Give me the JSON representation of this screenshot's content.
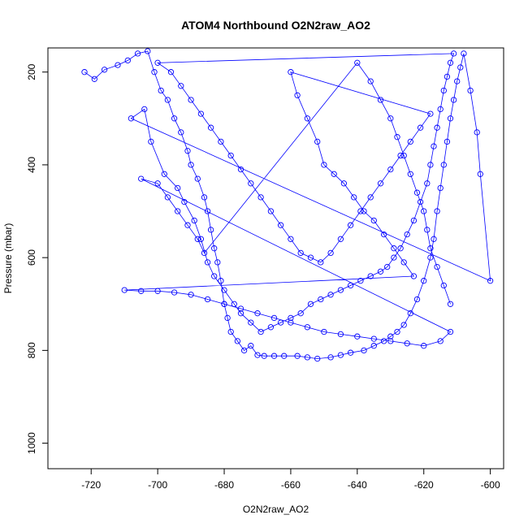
{
  "chart_data": {
    "type": "scatter",
    "title": "ATOM4 Northbound O2N2raw_AO2",
    "xlabel": "O2N2raw_AO2",
    "ylabel": "Pressure (mbar)",
    "xlim": [
      -733,
      -596
    ],
    "ylim": [
      1055,
      148
    ],
    "y_reversed": true,
    "x_ticks": [
      -720,
      -700,
      -680,
      -660,
      -640,
      -620,
      -600
    ],
    "x_tick_labels": [
      "-720",
      "-700",
      "-680",
      "-660",
      "-640",
      "-620",
      "-600"
    ],
    "y_ticks": [
      200,
      400,
      600,
      800,
      1000
    ],
    "y_tick_labels": [
      "200",
      "400",
      "600",
      "800",
      "1000"
    ],
    "grid": false,
    "legend": "none",
    "marker": "open-circle",
    "color": "#0000ff",
    "series": [
      {
        "points": [
          [
            -722,
            200
          ],
          [
            -719,
            215
          ],
          [
            -716,
            195
          ],
          [
            -712,
            185
          ],
          [
            -709,
            175
          ],
          [
            -706,
            160
          ],
          [
            -703,
            155
          ],
          [
            -701,
            200
          ],
          [
            -699,
            240
          ],
          [
            -697,
            260
          ],
          [
            -695,
            300
          ],
          [
            -693,
            330
          ],
          [
            -691,
            370
          ],
          [
            -690,
            400
          ],
          [
            -688,
            430
          ],
          [
            -686,
            470
          ],
          [
            -685,
            500
          ],
          [
            -684,
            540
          ],
          [
            -683,
            580
          ],
          [
            -682,
            610
          ],
          [
            -681,
            650
          ],
          [
            -680,
            700
          ],
          [
            -679,
            730
          ],
          [
            -678,
            760
          ],
          [
            -676,
            780
          ],
          [
            -674,
            800
          ],
          [
            -672,
            790
          ],
          [
            -670,
            810
          ],
          [
            -668,
            812
          ],
          [
            -665,
            812
          ],
          [
            -662,
            812
          ],
          [
            -658,
            812
          ],
          [
            -655,
            815
          ],
          [
            -652,
            818
          ],
          [
            -648,
            815
          ],
          [
            -645,
            810
          ],
          [
            -642,
            805
          ],
          [
            -638,
            800
          ],
          [
            -635,
            790
          ],
          [
            -632,
            780
          ],
          [
            -630,
            770
          ],
          [
            -628,
            760
          ],
          [
            -626,
            745
          ],
          [
            -624,
            720
          ],
          [
            -622,
            690
          ],
          [
            -620,
            650
          ],
          [
            -618,
            600
          ],
          [
            -617,
            560
          ],
          [
            -616,
            500
          ],
          [
            -615,
            450
          ],
          [
            -614,
            400
          ],
          [
            -613,
            350
          ],
          [
            -612,
            300
          ],
          [
            -611,
            260
          ],
          [
            -610,
            220
          ],
          [
            -609,
            190
          ],
          [
            -608,
            160
          ],
          [
            -606,
            240
          ],
          [
            -604,
            330
          ],
          [
            -603,
            420
          ],
          [
            -600,
            650
          ],
          [
            -708,
            300
          ],
          [
            -704,
            280
          ],
          [
            -702,
            350
          ],
          [
            -698,
            420
          ],
          [
            -694,
            450
          ],
          [
            -692,
            480
          ],
          [
            -689,
            520
          ],
          [
            -687,
            560
          ],
          [
            -685,
            610
          ],
          [
            -683,
            640
          ],
          [
            -680,
            670
          ],
          [
            -677,
            700
          ],
          [
            -675,
            720
          ],
          [
            -672,
            740
          ],
          [
            -669,
            760
          ],
          [
            -666,
            750
          ],
          [
            -663,
            740
          ],
          [
            -660,
            730
          ],
          [
            -657,
            720
          ],
          [
            -654,
            700
          ],
          [
            -651,
            690
          ],
          [
            -648,
            680
          ],
          [
            -645,
            670
          ],
          [
            -642,
            660
          ],
          [
            -639,
            650
          ],
          [
            -636,
            640
          ],
          [
            -633,
            630
          ],
          [
            -631,
            620
          ],
          [
            -629,
            600
          ],
          [
            -627,
            580
          ],
          [
            -625,
            550
          ],
          [
            -623,
            520
          ],
          [
            -621,
            480
          ],
          [
            -619,
            440
          ],
          [
            -618,
            400
          ],
          [
            -617,
            360
          ],
          [
            -616,
            320
          ],
          [
            -615,
            280
          ],
          [
            -614,
            240
          ],
          [
            -613,
            210
          ],
          [
            -612,
            180
          ],
          [
            -611,
            160
          ],
          [
            -700,
            180
          ],
          [
            -696,
            200
          ],
          [
            -693,
            230
          ],
          [
            -690,
            260
          ],
          [
            -687,
            290
          ],
          [
            -684,
            320
          ],
          [
            -681,
            350
          ],
          [
            -678,
            380
          ],
          [
            -675,
            410
          ],
          [
            -672,
            440
          ],
          [
            -669,
            470
          ],
          [
            -666,
            500
          ],
          [
            -663,
            530
          ],
          [
            -660,
            560
          ],
          [
            -657,
            590
          ],
          [
            -654,
            600
          ],
          [
            -651,
            610
          ],
          [
            -648,
            590
          ],
          [
            -645,
            560
          ],
          [
            -642,
            530
          ],
          [
            -639,
            500
          ],
          [
            -636,
            470
          ],
          [
            -633,
            440
          ],
          [
            -630,
            410
          ],
          [
            -627,
            380
          ],
          [
            -624,
            350
          ],
          [
            -621,
            320
          ],
          [
            -618,
            290
          ],
          [
            -660,
            200
          ],
          [
            -658,
            250
          ],
          [
            -655,
            300
          ],
          [
            -652,
            350
          ],
          [
            -650,
            400
          ],
          [
            -647,
            420
          ],
          [
            -644,
            440
          ],
          [
            -641,
            470
          ],
          [
            -638,
            500
          ],
          [
            -635,
            520
          ],
          [
            -632,
            550
          ],
          [
            -629,
            580
          ],
          [
            -626,
            610
          ],
          [
            -623,
            640
          ],
          [
            -710,
            670
          ],
          [
            -705,
            672
          ],
          [
            -700,
            672
          ],
          [
            -695,
            675
          ],
          [
            -690,
            680
          ],
          [
            -685,
            690
          ],
          [
            -680,
            700
          ],
          [
            -675,
            710
          ],
          [
            -670,
            720
          ],
          [
            -665,
            730
          ],
          [
            -660,
            740
          ],
          [
            -655,
            750
          ],
          [
            -650,
            760
          ],
          [
            -645,
            765
          ],
          [
            -640,
            770
          ],
          [
            -635,
            775
          ],
          [
            -630,
            780
          ],
          [
            -625,
            785
          ],
          [
            -620,
            790
          ],
          [
            -615,
            780
          ],
          [
            -612,
            760
          ],
          [
            -705,
            430
          ],
          [
            -700,
            440
          ],
          [
            -697,
            470
          ],
          [
            -694,
            500
          ],
          [
            -691,
            530
          ],
          [
            -688,
            560
          ],
          [
            -686,
            590
          ],
          [
            -640,
            180
          ],
          [
            -636,
            220
          ],
          [
            -633,
            260
          ],
          [
            -630,
            300
          ],
          [
            -628,
            340
          ],
          [
            -626,
            380
          ],
          [
            -624,
            420
          ],
          [
            -622,
            460
          ],
          [
            -620,
            500
          ],
          [
            -619,
            540
          ],
          [
            -618,
            580
          ],
          [
            -616,
            620
          ],
          [
            -614,
            660
          ],
          [
            -612,
            700
          ]
        ]
      }
    ]
  }
}
